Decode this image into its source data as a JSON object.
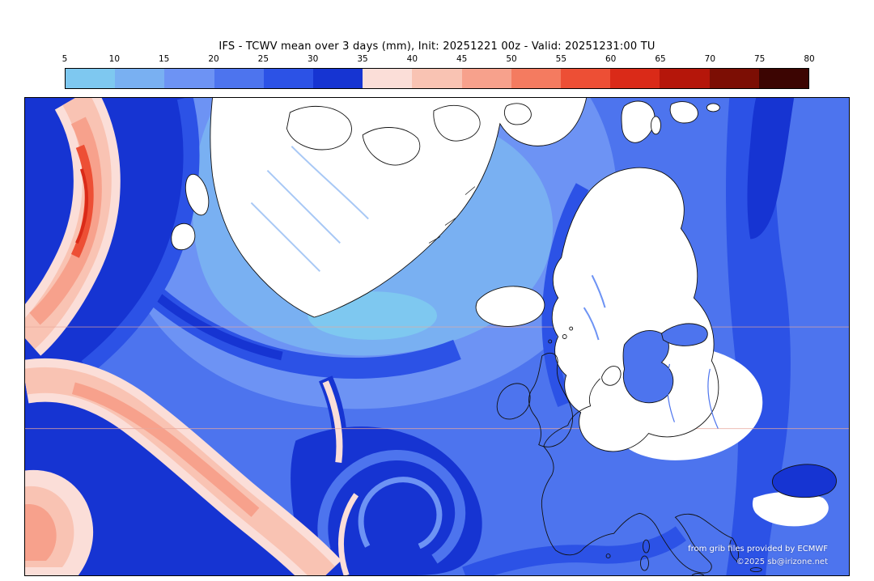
{
  "header": {
    "title": "IFS - TCWV mean over 3 days (mm), Init: 20251221 00z - Valid: 20251231:00 TU"
  },
  "colorbar": {
    "unit": "mm",
    "tick_labels": [
      "5",
      "10",
      "15",
      "20",
      "25",
      "30",
      "35",
      "40",
      "45",
      "50",
      "55",
      "60",
      "65",
      "70",
      "75",
      "80"
    ],
    "segment_colors": [
      "#7ec8f0",
      "#79b0f2",
      "#6d93f4",
      "#4d74ee",
      "#2c52e6",
      "#1634d2",
      "#fbded8",
      "#f9c3b3",
      "#f7a18c",
      "#f47b60",
      "#ed4f35",
      "#da2a18",
      "#b5160a",
      "#7c0e04",
      "#3c0502"
    ]
  },
  "map": {
    "attribution_line1": "from grib files provided by ECMWF",
    "attribution_line2": "©2025 sb@irizone.net"
  },
  "chart_data": {
    "type": "heatmap",
    "title": "IFS - TCWV mean over 3 days (mm), Init: 20251221 00z - Valid: 20251231:00 TU",
    "variable": "Total column water vapour mean over 3 days",
    "units": "mm",
    "init": "20251221 00z",
    "valid": "20251231:00 TU",
    "scale_ticks": [
      5,
      10,
      15,
      20,
      25,
      30,
      35,
      40,
      45,
      50,
      55,
      60,
      65,
      70,
      75,
      80
    ],
    "scale_min": 5,
    "scale_max": 80,
    "legend_position": "top",
    "region": "North Atlantic / Greenland / Europe",
    "field_summary": "Mostly 10-25 mm (blues) over the North Atlantic and Europe; below 5 mm (white) over Greenland, the Arctic islands, Scandinavia and central Europe; 25-35 mm dark-blue bands on the western and southern flanks with a cyclonic swirl south of Iceland; a 35-60 mm moist plume (pink/red) along the far western edge with red cores near the top-left"
  }
}
